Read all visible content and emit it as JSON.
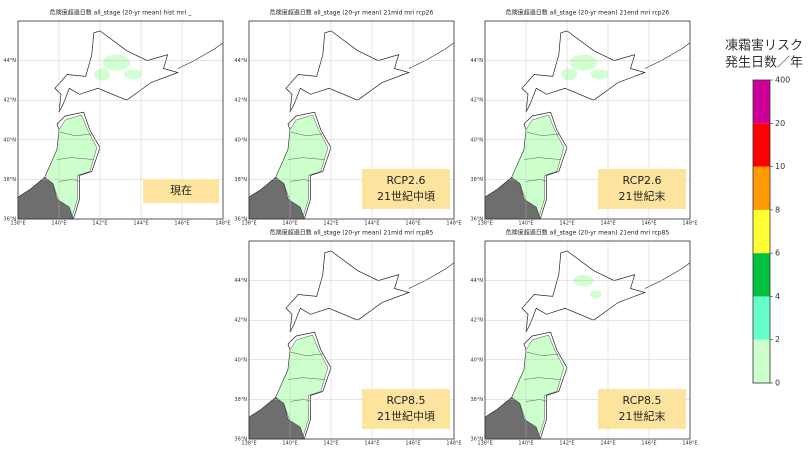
{
  "panels": [
    {
      "title": "危険度超過日数 all_stage (20-yr mean)  hist  mri  _",
      "label": [
        "現在"
      ]
    },
    {
      "title": "危険度超過日数 all_stage (20-yr mean)  21mid  mri  rcp26",
      "label": [
        "RCP2.6",
        "21世紀中頃"
      ]
    },
    {
      "title": "危険度超過日数 all_stage (20-yr mean)  21end  mri  rcp26",
      "label": [
        "RCP2.6",
        "21世紀末"
      ]
    },
    {
      "title": "危険度超過日数 all_stage (20-yr mean)  21mid  mri  rcp85",
      "label": [
        "RCP8.5",
        "21世紀中頃"
      ]
    },
    {
      "title": "危険度超過日数 all_stage (20-yr mean)  21end  mri  rcp85",
      "label": [
        "RCP8.5",
        "21世紀末"
      ]
    }
  ],
  "lat_ticks": [
    "36°N",
    "38°N",
    "40°N",
    "42°N",
    "44°N"
  ],
  "lon_ticks": [
    "138°E",
    "140°E",
    "142°E",
    "144°E",
    "146°E",
    "148°E"
  ],
  "legend": {
    "title": [
      "凍霜害リスク",
      "発生日数／年"
    ],
    "levels": [
      0,
      2,
      4,
      6,
      8,
      10,
      20,
      400
    ],
    "colors": [
      "#ccffcc",
      "#66ffcc",
      "#00c040",
      "#ffff33",
      "#ff9900",
      "#ff0000",
      "#cc0099"
    ]
  }
}
